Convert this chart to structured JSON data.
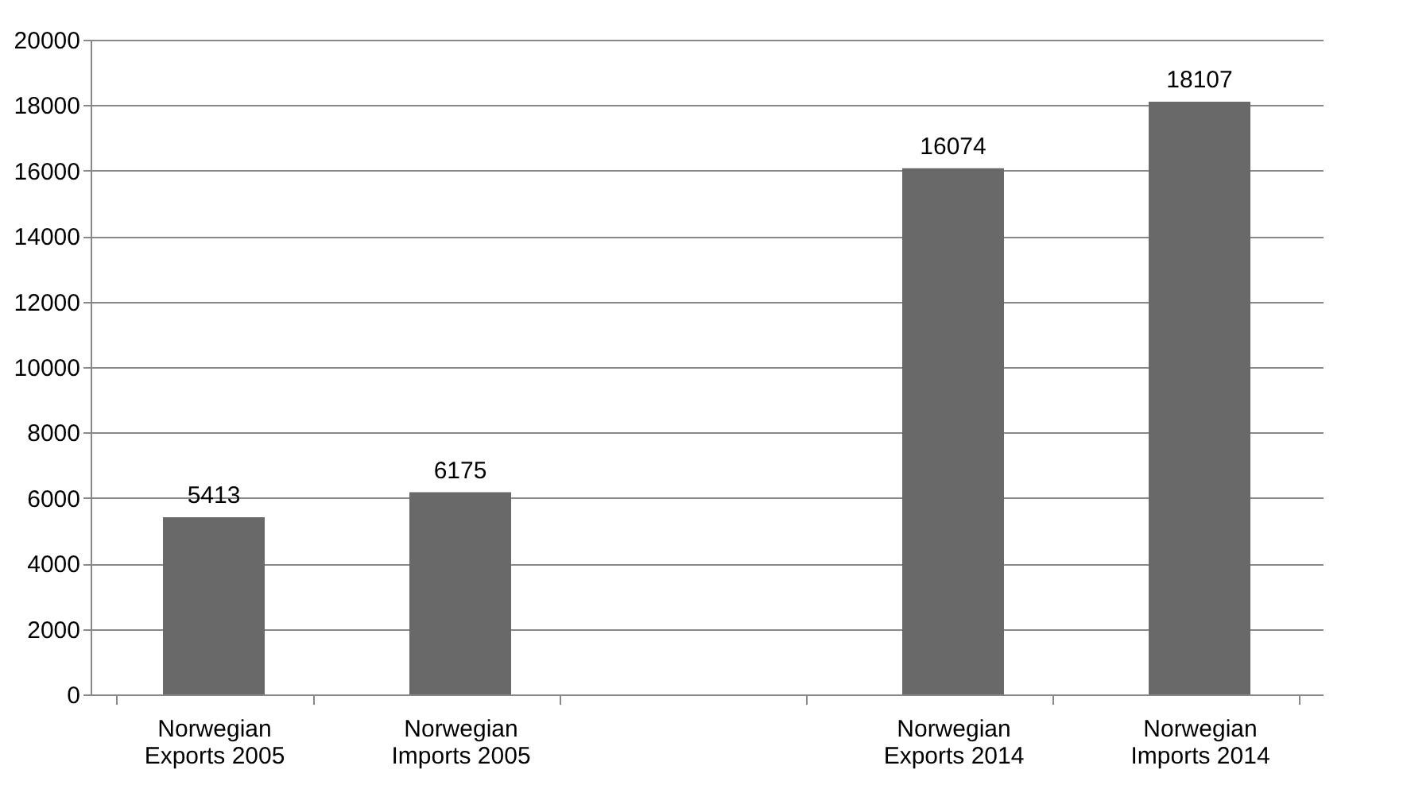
{
  "chart_data": {
    "type": "bar",
    "categories": [
      "Norwegian Exports 2005",
      "Norwegian Imports 2005",
      null,
      "Norwegian Exports 2014",
      "Norwegian Imports 2014"
    ],
    "values": [
      5413,
      6175,
      null,
      16074,
      18107
    ],
    "color": "#696969",
    "ylim": [
      0,
      20000
    ],
    "yticks": [
      0,
      2000,
      4000,
      6000,
      8000,
      10000,
      12000,
      14000,
      16000,
      18000,
      20000
    ],
    "grid": "y",
    "data_labels": true
  }
}
